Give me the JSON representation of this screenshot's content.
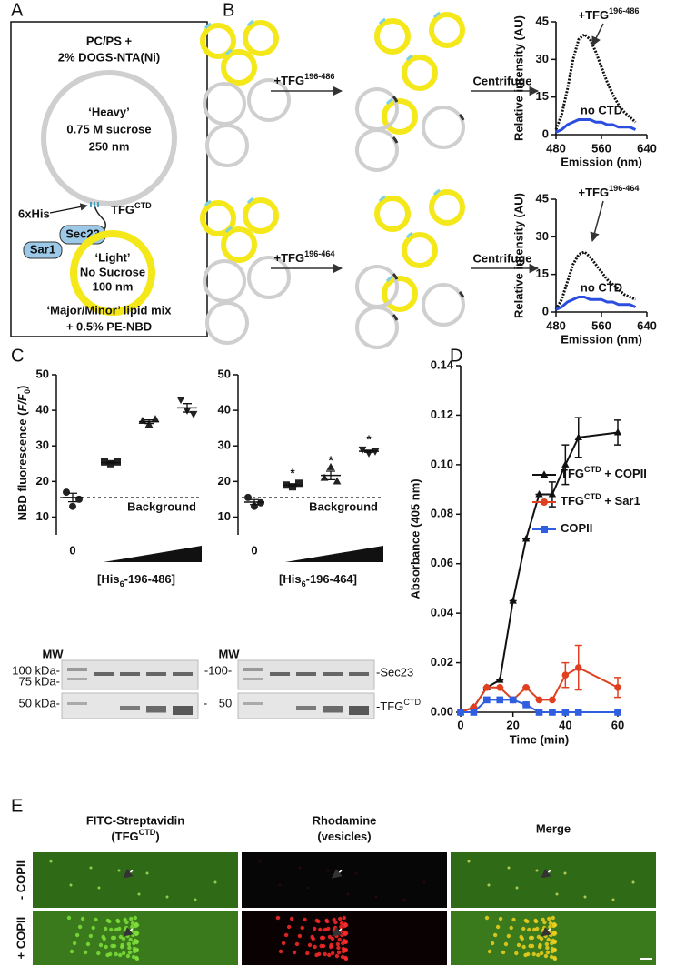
{
  "panel_a": {
    "letter": "A",
    "top": [
      "PC/PS +",
      "2% DOGS-NTA(Ni)"
    ],
    "heavy": [
      "‘Heavy’",
      "0.75 M sucrose",
      "250 nm"
    ],
    "his": "6xHis",
    "tfg": "TFG",
    "tfg_sup": "CTD",
    "sec23": "Sec23",
    "sar1": "Sar1",
    "light": [
      "‘Light’",
      "No Sucrose",
      "100 nm"
    ],
    "bottom": [
      "‘Major/Minor’ lipid mix",
      "+ 0.5% PE-NBD"
    ]
  },
  "panel_b": {
    "letter": "B",
    "rows": [
      {
        "protein": "+TFG",
        "protein_sup": "196-486",
        "step": "Centrifuge",
        "chart": {
          "type": "line",
          "ylabel": "Relative intensity (AU)",
          "xlabel": "Emission (nm)",
          "xlim": [
            480,
            640
          ],
          "xticks": [
            480,
            560,
            640
          ],
          "ylim": [
            0,
            45
          ],
          "yticks": [
            0,
            15,
            30,
            45
          ],
          "x": [
            480,
            490,
            500,
            510,
            520,
            530,
            540,
            550,
            560,
            570,
            580,
            590,
            600,
            610,
            620
          ],
          "series": [
            {
              "name": "+TFG",
              "name_sup": "196-486",
              "color": "#111111",
              "values": [
                2,
                8,
                18,
                30,
                38,
                40,
                38,
                33,
                27,
                21,
                16,
                12,
                9,
                7,
                5
              ]
            },
            {
              "name": "no CTD",
              "color": "#2b4de0",
              "values": [
                1,
                2,
                4,
                5,
                6,
                6,
                6,
                5,
                5,
                4,
                4,
                3,
                3,
                3,
                2
              ]
            }
          ]
        }
      },
      {
        "protein": "+TFG",
        "protein_sup": "196-464",
        "step": "Centrifuge",
        "chart": {
          "type": "line",
          "ylabel": "Relative intensity (AU)",
          "xlabel": "Emission (nm)",
          "xlim": [
            480,
            640
          ],
          "xticks": [
            480,
            560,
            640
          ],
          "ylim": [
            0,
            45
          ],
          "yticks": [
            0,
            15,
            30,
            45
          ],
          "x": [
            480,
            490,
            500,
            510,
            520,
            530,
            540,
            550,
            560,
            570,
            580,
            590,
            600,
            610,
            620
          ],
          "series": [
            {
              "name": "+TFG",
              "name_sup": "196-464",
              "color": "#111111",
              "values": [
                1,
                5,
                12,
                19,
                23,
                24,
                22,
                19,
                16,
                13,
                11,
                9,
                7,
                6,
                5
              ]
            },
            {
              "name": "no CTD",
              "color": "#2b4de0",
              "values": [
                1,
                2,
                4,
                5,
                6,
                6,
                5,
                5,
                5,
                4,
                4,
                3,
                3,
                3,
                2
              ]
            }
          ]
        }
      }
    ]
  },
  "panel_c": {
    "letter": "C",
    "ylabel_parts": [
      "NBD fluorescence (",
      "F/F",
      "0",
      ")"
    ],
    "charts": [
      {
        "type": "scatter",
        "categories": [
          "0",
          null,
          null,
          null
        ],
        "ylim": [
          5,
          50
        ],
        "yticks": [
          10,
          20,
          30,
          40,
          50
        ],
        "markers": [
          "circle",
          "square",
          "triangle",
          "triangle-down"
        ],
        "points": [
          [
            17,
            13,
            15
          ],
          [
            25.5,
            25,
            25.5
          ],
          [
            37,
            36,
            37.5
          ],
          [
            43,
            40,
            39
          ]
        ],
        "means": [
          15.5,
          25.3,
          36.8,
          40.7
        ],
        "sems": [
          1.2,
          0.3,
          0.5,
          1.2
        ],
        "annotations": [
          null,
          null,
          null,
          null
        ],
        "background": 15.5,
        "background_label": "Background",
        "xlabel_parts": [
          "[His",
          "6",
          "-196-486]"
        ]
      },
      {
        "type": "scatter",
        "categories": [
          "0",
          null,
          null,
          null
        ],
        "ylim": [
          5,
          50
        ],
        "yticks": [
          10,
          20,
          30,
          40,
          50
        ],
        "markers": [
          "circle",
          "square",
          "triangle",
          "triangle-down"
        ],
        "points": [
          [
            15.5,
            13,
            14
          ],
          [
            19,
            18.5,
            19.5
          ],
          [
            21,
            24,
            20
          ],
          [
            29,
            28,
            28.5
          ]
        ],
        "means": [
          14.2,
          19,
          21.7,
          28.5
        ],
        "sems": [
          0.7,
          0.3,
          1.2,
          0.3
        ],
        "annotations": [
          null,
          "*",
          "*",
          "*"
        ],
        "background": 15.5,
        "background_label": "Background",
        "xlabel_parts": [
          "[His",
          "6",
          "-196-464]"
        ]
      }
    ],
    "gel_left": {
      "mw": "MW",
      "labels": [
        "100 kDa-",
        "75 kDa-",
        "50 kDa-"
      ]
    },
    "gel_middle": [
      "-100-",
      "-",
      "50"
    ],
    "gel_right": {
      "mw": "MW",
      "sec23": "-Sec23",
      "tfg": "-TFG",
      "tfg_sup": "CTD"
    }
  },
  "panel_d": {
    "letter": "D",
    "type": "line",
    "ylabel": "Absorbance (405 nm)",
    "xlabel": "Time (min)",
    "xlim": [
      0,
      60
    ],
    "xticks": [
      0,
      20,
      40,
      60
    ],
    "ylim": [
      0,
      0.14
    ],
    "yticks": [
      {
        "value": 0,
        "label": "0.00"
      },
      {
        "value": 0.02,
        "label": "0.02"
      },
      {
        "value": 0.04,
        "label": "0.04"
      },
      {
        "value": 0.06,
        "label": "0.06"
      },
      {
        "value": 0.08,
        "label": "0.08"
      },
      {
        "value": 0.1,
        "label": "0.10"
      },
      {
        "value": 0.12,
        "label": "0.12"
      },
      {
        "value": 0.14,
        "label": "0.14"
      }
    ],
    "x": [
      0,
      5,
      10,
      15,
      20,
      25,
      30,
      35,
      40,
      45,
      60
    ],
    "series": [
      {
        "name": "TFG",
        "name_sup": "CTD",
        "name_rest": " + COPII",
        "color": "#111111",
        "marker": "triangle",
        "values": [
          0,
          0.002,
          0.01,
          0.013,
          0.045,
          0.07,
          0.088,
          0.088,
          0.1,
          0.111,
          0.113
        ],
        "errors": [
          0,
          0,
          0,
          0,
          0,
          0,
          0,
          0.005,
          0.008,
          0.008,
          0.005
        ]
      },
      {
        "name": "TFG",
        "name_sup": "CTD",
        "name_rest": " + Sar1",
        "color": "#e0401f",
        "marker": "circle",
        "values": [
          0,
          0.002,
          0.01,
          0.01,
          0.005,
          0.01,
          0.005,
          0.005,
          0.015,
          0.018,
          0.01
        ],
        "errors": [
          0,
          0,
          0,
          0,
          0,
          0,
          0,
          0,
          0.005,
          0.009,
          0.004
        ]
      },
      {
        "name": "COPII",
        "color": "#2f5fe0",
        "marker": "square",
        "values": [
          0,
          0,
          0.005,
          0.005,
          0.005,
          0.003,
          0,
          0,
          0,
          0,
          0
        ],
        "errors": [
          0,
          0,
          0,
          0,
          0,
          0,
          0,
          0,
          0,
          0,
          0
        ]
      }
    ]
  },
  "panel_e": {
    "letter": "E",
    "headers": [
      {
        "line1": "FITC-Streptavidin",
        "line2": "(TFG",
        "line2_sup": "CTD",
        "line2_end": ")"
      },
      {
        "line1": "Rhodamine",
        "line2": "(vesicles)"
      },
      {
        "line1": "Merge"
      }
    ],
    "rows": [
      "- COPII",
      "+ COPII"
    ]
  }
}
